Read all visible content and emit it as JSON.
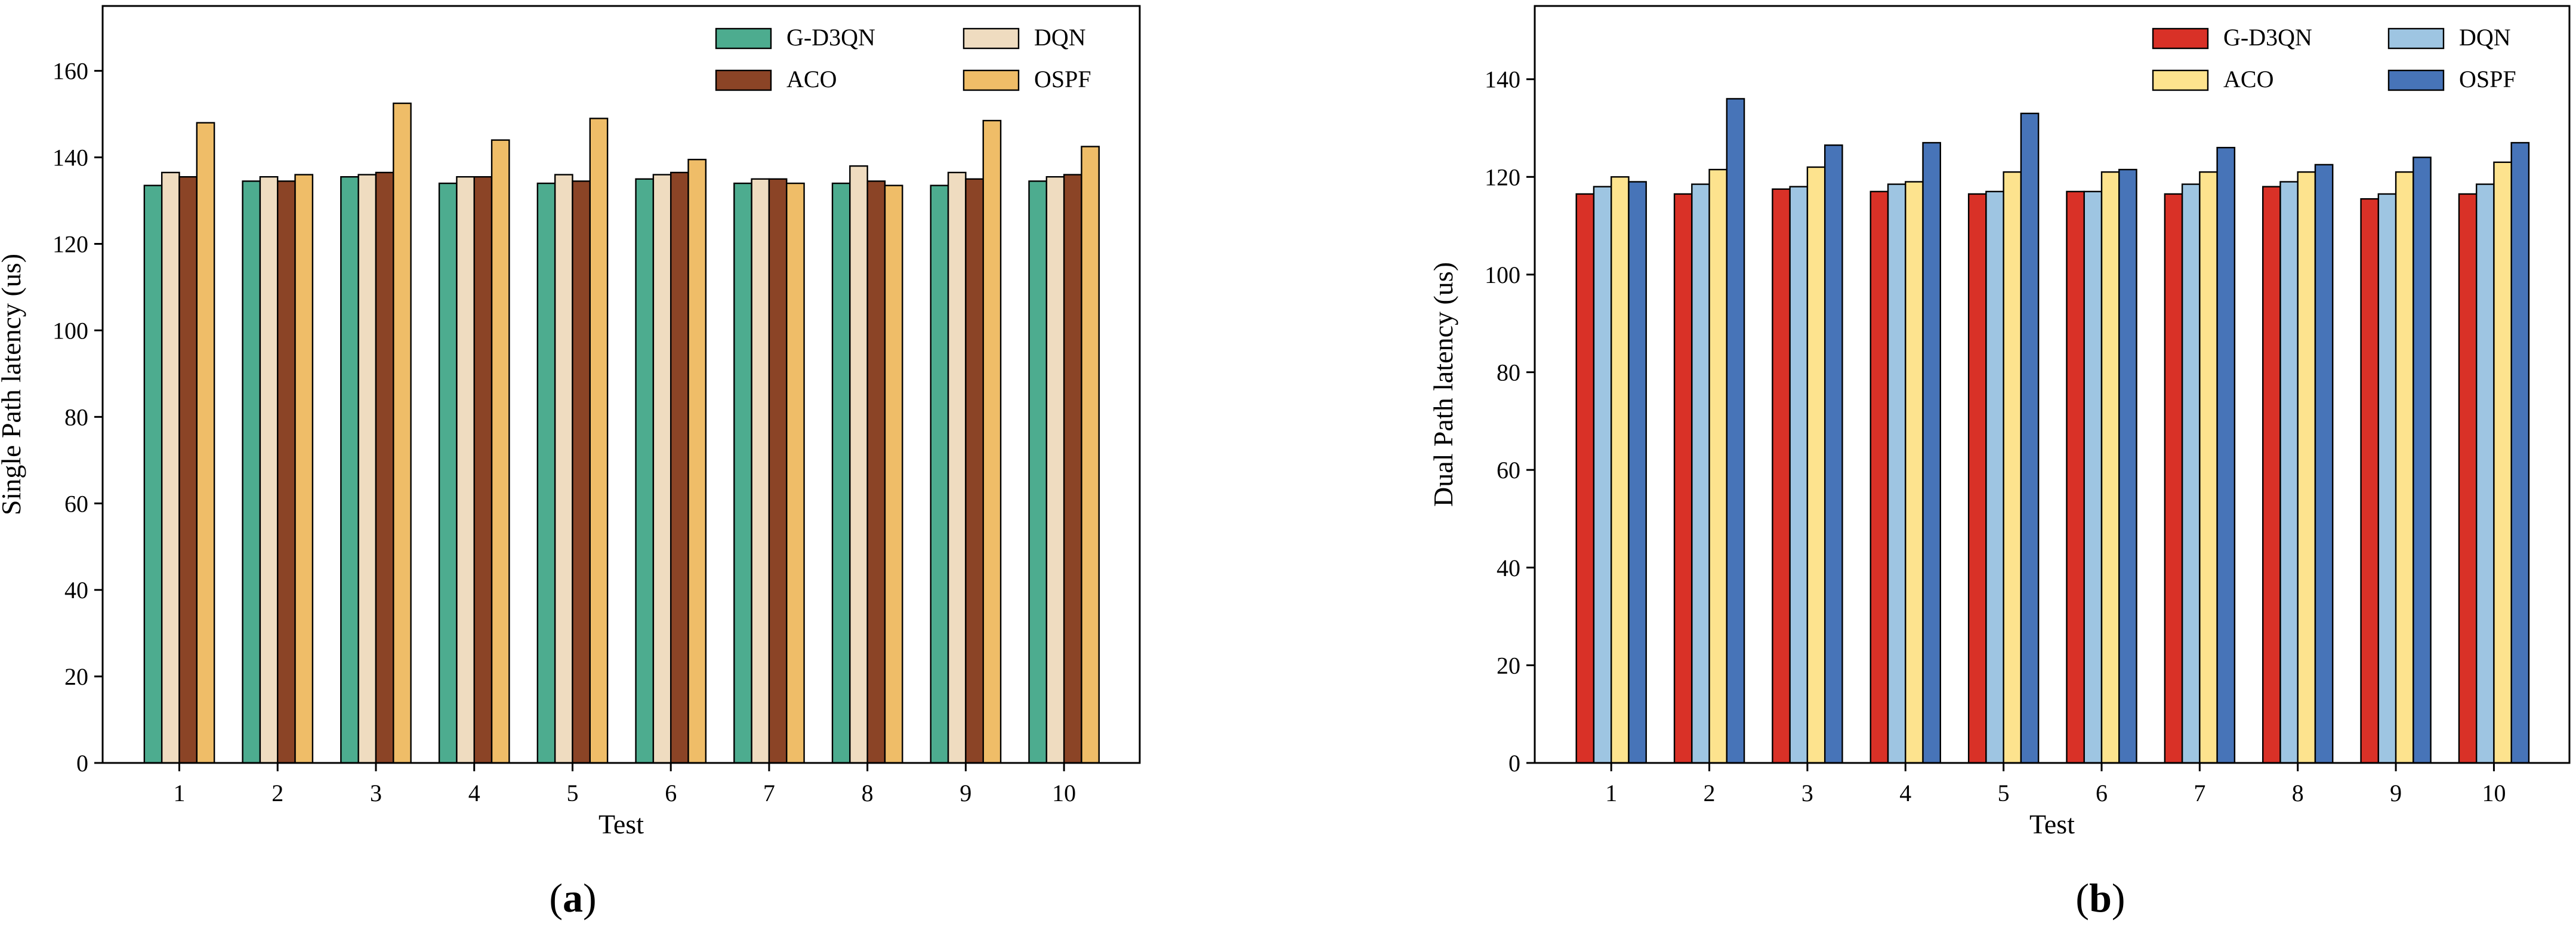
{
  "chart_data": [
    {
      "type": "bar",
      "panel_label": "a",
      "title": "",
      "xlabel": "Test",
      "ylabel": "Single Path latency (us)",
      "ylim": [
        0,
        175
      ],
      "yticks": [
        0,
        20,
        40,
        60,
        80,
        100,
        120,
        140,
        160
      ],
      "categories": [
        "1",
        "2",
        "3",
        "4",
        "5",
        "6",
        "7",
        "8",
        "9",
        "10"
      ],
      "legend_location": "upper-right",
      "series": [
        {
          "name": "G-D3QN",
          "color": "#4dac8f",
          "values": [
            133.5,
            134.5,
            135.5,
            134,
            134,
            135,
            134,
            134,
            133.5,
            134.5
          ]
        },
        {
          "name": "DQN",
          "color": "#efdcc0",
          "values": [
            136.5,
            135.5,
            136,
            135.5,
            136,
            136,
            135,
            138,
            136.5,
            135.5
          ]
        },
        {
          "name": "ACO",
          "color": "#8b4426",
          "values": [
            135.5,
            134.5,
            136.5,
            135.5,
            134.5,
            136.5,
            135,
            134.5,
            135,
            136
          ]
        },
        {
          "name": "OSPF",
          "color": "#efbd68",
          "values": [
            148,
            136,
            152.5,
            144,
            149,
            139.5,
            134,
            133.5,
            148.5,
            142.5
          ]
        }
      ]
    },
    {
      "type": "bar",
      "panel_label": "b",
      "title": "",
      "xlabel": "Test",
      "ylabel": "Dual Path latency (us)",
      "ylim": [
        0,
        155
      ],
      "yticks": [
        0,
        20,
        40,
        60,
        80,
        100,
        120,
        140
      ],
      "categories": [
        "1",
        "2",
        "3",
        "4",
        "5",
        "6",
        "7",
        "8",
        "9",
        "10"
      ],
      "legend_location": "upper-right",
      "series": [
        {
          "name": "G-D3QN",
          "color": "#d93127",
          "values": [
            116.5,
            116.5,
            117.5,
            117,
            116.5,
            117,
            116.5,
            118,
            115.5,
            116.5
          ]
        },
        {
          "name": "DQN",
          "color": "#9ec5e2",
          "values": [
            118,
            118.5,
            118,
            118.5,
            117,
            117,
            118.5,
            119,
            116.5,
            118.5
          ]
        },
        {
          "name": "ACO",
          "color": "#fde38e",
          "values": [
            120,
            121.5,
            122,
            119,
            121,
            121,
            121,
            121,
            121,
            123
          ]
        },
        {
          "name": "OSPF",
          "color": "#4774b8",
          "values": [
            119,
            136,
            126.5,
            127,
            133,
            121.5,
            126,
            122.5,
            124,
            127
          ]
        }
      ]
    }
  ]
}
